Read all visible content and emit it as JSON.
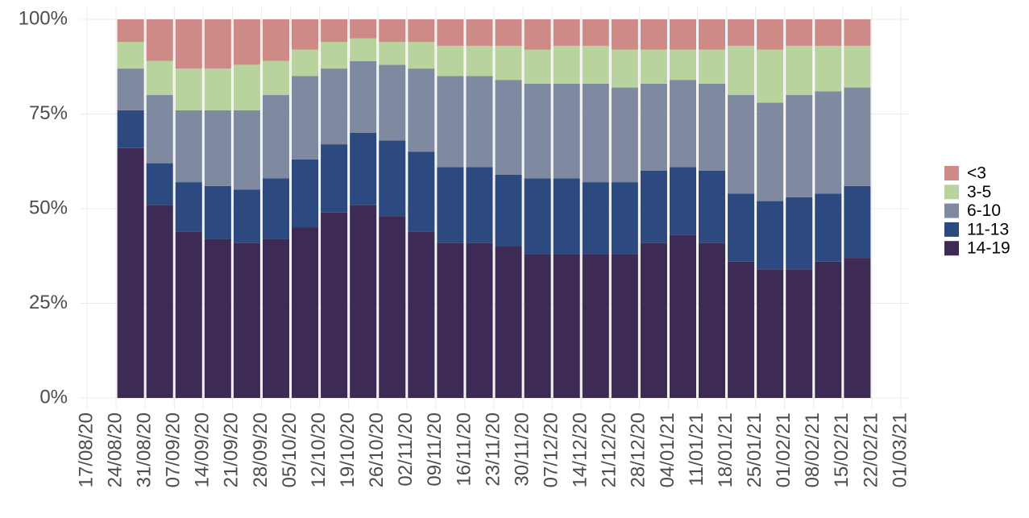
{
  "chart_data": {
    "type": "stacked-bar",
    "x": [
      "24/08/20",
      "31/08/20",
      "07/09/20",
      "14/09/20",
      "21/09/20",
      "28/09/20",
      "05/10/20",
      "12/10/20",
      "19/10/20",
      "26/10/20",
      "02/11/20",
      "09/11/20",
      "16/11/20",
      "23/11/20",
      "30/11/20",
      "07/12/20",
      "14/12/20",
      "21/12/20",
      "28/12/20",
      "04/01/21",
      "11/01/21",
      "18/01/21",
      "25/01/21",
      "01/02/21",
      "08/02/21",
      "15/02/21"
    ],
    "series": [
      {
        "name": "14-19",
        "color": "#3d2b55",
        "values": [
          66,
          51,
          44,
          42,
          41,
          42,
          45,
          49,
          51,
          48,
          44,
          41,
          41,
          40,
          38,
          38,
          38,
          38,
          41,
          43,
          41,
          36,
          34,
          34,
          36,
          37
        ]
      },
      {
        "name": "11-13",
        "color": "#2c4a80",
        "values": [
          10,
          11,
          13,
          14,
          14,
          16,
          18,
          18,
          19,
          20,
          21,
          20,
          20,
          19,
          20,
          20,
          19,
          19,
          19,
          18,
          19,
          18,
          18,
          19,
          18,
          19
        ]
      },
      {
        "name": "6-10",
        "color": "#7f8aa0",
        "values": [
          11,
          18,
          19,
          20,
          21,
          22,
          22,
          20,
          19,
          20,
          22,
          24,
          24,
          25,
          25,
          25,
          26,
          25,
          23,
          23,
          23,
          26,
          26,
          27,
          27,
          26
        ]
      },
      {
        "name": "3-5",
        "color": "#b9d39f",
        "values": [
          7,
          9,
          11,
          11,
          12,
          9,
          7,
          7,
          6,
          6,
          7,
          8,
          8,
          9,
          9,
          10,
          10,
          10,
          9,
          8,
          9,
          13,
          14,
          13,
          12,
          11
        ]
      },
      {
        "name": "<3",
        "color": "#cd8a86",
        "values": [
          6,
          11,
          13,
          13,
          12,
          11,
          8,
          6,
          5,
          6,
          6,
          7,
          7,
          7,
          8,
          7,
          7,
          8,
          8,
          8,
          8,
          7,
          8,
          7,
          7,
          7
        ]
      }
    ],
    "xlim": [
      "17/08/20",
      "01/03/21"
    ],
    "xticks": [
      "17/08/20",
      "24/08/20",
      "31/08/20",
      "07/09/20",
      "14/09/20",
      "21/09/20",
      "28/09/20",
      "05/10/20",
      "12/10/20",
      "19/10/20",
      "26/10/20",
      "02/11/20",
      "09/11/20",
      "16/11/20",
      "23/11/20",
      "30/11/20",
      "07/12/20",
      "14/12/20",
      "21/12/20",
      "28/12/20",
      "04/01/21",
      "11/01/21",
      "18/01/21",
      "25/01/21",
      "01/02/21",
      "08/02/21",
      "15/02/21",
      "22/02/21",
      "01/03/21"
    ],
    "ylim": [
      0,
      100
    ],
    "yticks": [
      {
        "value": 0,
        "label": "0%"
      },
      {
        "value": 25,
        "label": "25%"
      },
      {
        "value": 50,
        "label": "50%"
      },
      {
        "value": 75,
        "label": "75%"
      },
      {
        "value": 100,
        "label": "100%"
      }
    ],
    "grid": true
  }
}
